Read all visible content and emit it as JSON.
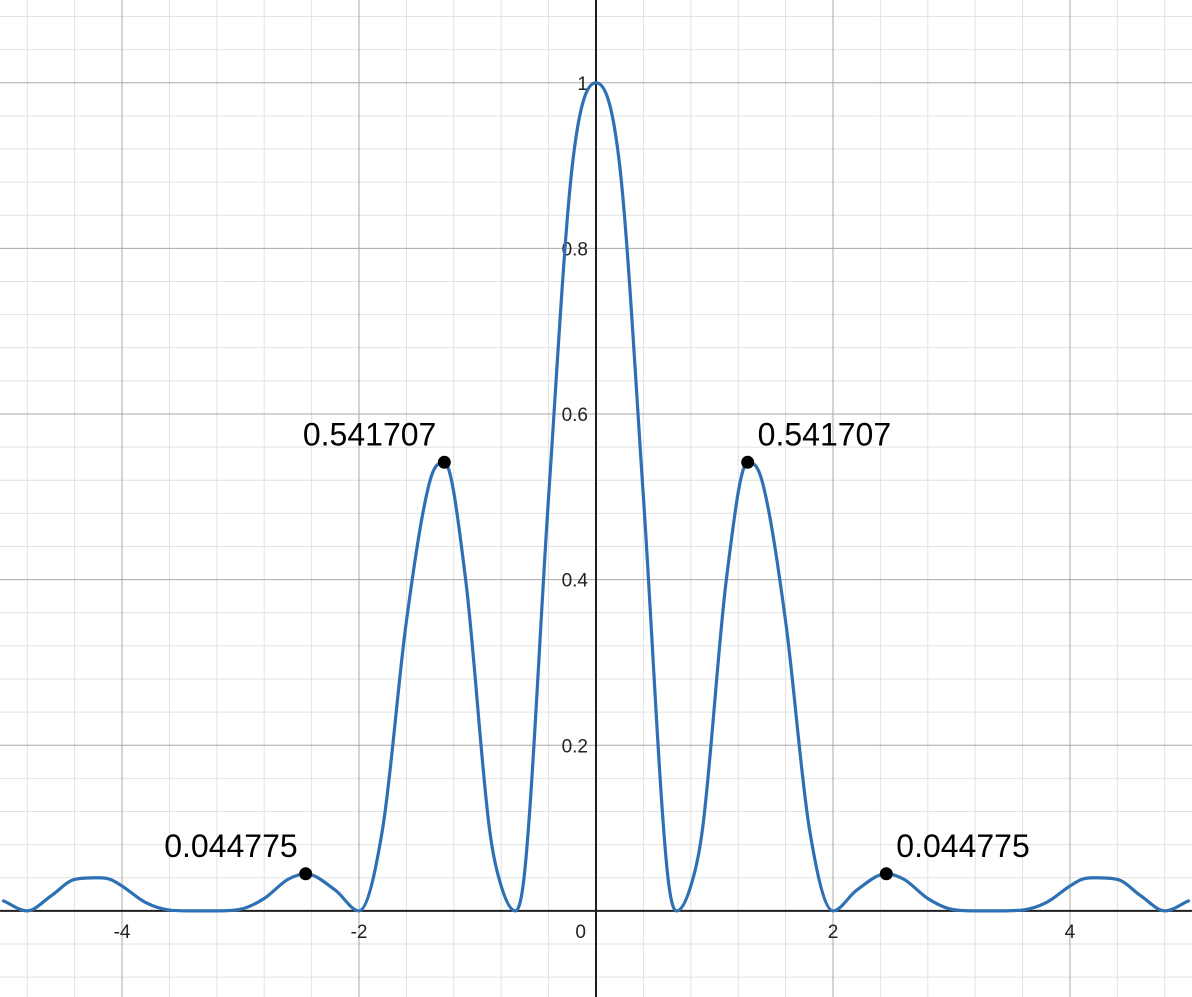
{
  "chart_data": {
    "type": "line",
    "title": "",
    "xlabel": "",
    "ylabel": "",
    "xlim": [
      -5.03,
      5.03
    ],
    "ylim": [
      -0.104,
      1.1
    ],
    "grid": true,
    "colors": {
      "curve": "#2d70b3",
      "points": "#000000",
      "axes": "#1f1f1f"
    },
    "x_ticks": [
      {
        "value": -4,
        "label": "-4"
      },
      {
        "value": -2,
        "label": "-2"
      },
      {
        "value": 0,
        "label": "0"
      },
      {
        "value": 2,
        "label": "2"
      },
      {
        "value": 4,
        "label": "4"
      }
    ],
    "y_ticks": [
      {
        "value": 0.2,
        "label": "0.2"
      },
      {
        "value": 0.4,
        "label": "0.4"
      },
      {
        "value": 0.6,
        "label": "0.6"
      },
      {
        "value": 0.8,
        "label": "0.8"
      },
      {
        "value": 1,
        "label": "1"
      }
    ],
    "series": [
      {
        "x": [
          -5.0,
          -4.8,
          -4.6,
          -4.4,
          -4.2,
          -4.1,
          -4.0,
          -3.8,
          -3.6,
          -3.4,
          -3.2,
          -3.0,
          -2.8,
          -2.6,
          -2.45,
          -2.2,
          -2.0,
          -1.8,
          -1.6,
          -1.4,
          -1.28,
          -1.1,
          -0.9,
          -0.8,
          -0.68,
          -0.6,
          -0.4,
          -0.2,
          0.0,
          0.2,
          0.4,
          0.6,
          0.68,
          0.8,
          0.9,
          1.1,
          1.28,
          1.4,
          1.6,
          1.8,
          2.0,
          2.2,
          2.45,
          2.6,
          2.8,
          3.0,
          3.2,
          3.4,
          3.6,
          3.8,
          4.0,
          4.1,
          4.2,
          4.4,
          4.6,
          4.8,
          5.0
        ],
        "y": [
          0.012,
          0.0,
          0.018,
          0.038,
          0.04,
          0.038,
          0.03,
          0.01,
          0.001,
          0.0,
          0.0,
          0.002,
          0.015,
          0.038,
          0.044775,
          0.025,
          0.0,
          0.1,
          0.35,
          0.52,
          0.541707,
          0.4,
          0.1,
          0.03,
          0.0,
          0.05,
          0.5,
          0.9,
          1.0,
          0.9,
          0.5,
          0.05,
          0.0,
          0.03,
          0.1,
          0.4,
          0.541707,
          0.52,
          0.35,
          0.1,
          0.0,
          0.025,
          0.044775,
          0.038,
          0.015,
          0.002,
          0.0,
          0.0,
          0.001,
          0.01,
          0.03,
          0.038,
          0.04,
          0.038,
          0.018,
          0.0,
          0.012
        ]
      }
    ],
    "points": [
      {
        "x": -1.28,
        "y": 0.541707,
        "label": "0.541707"
      },
      {
        "x": 1.28,
        "y": 0.541707,
        "label": "0.541707"
      },
      {
        "x": -2.45,
        "y": 0.044775,
        "label": "0.044775"
      },
      {
        "x": 2.45,
        "y": 0.044775,
        "label": "0.044775"
      }
    ]
  }
}
